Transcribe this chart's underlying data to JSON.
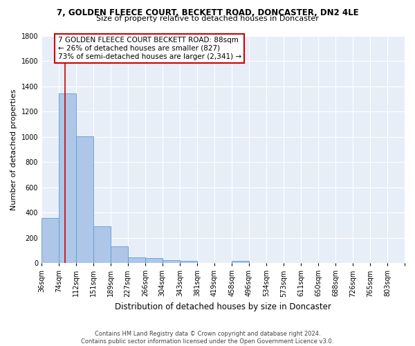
{
  "title1": "7, GOLDEN FLEECE COURT, BECKETT ROAD, DONCASTER, DN2 4LE",
  "title2": "Size of property relative to detached houses in Doncaster",
  "xlabel": "Distribution of detached houses by size in Doncaster",
  "ylabel": "Number of detached properties",
  "bar_values": [
    355,
    1340,
    1005,
    293,
    130,
    42,
    38,
    25,
    18,
    0,
    0,
    18,
    0,
    0,
    0,
    0,
    0,
    0,
    0,
    0
  ],
  "categories": [
    "36sqm",
    "74sqm",
    "112sqm",
    "151sqm",
    "189sqm",
    "227sqm",
    "266sqm",
    "304sqm",
    "343sqm",
    "381sqm",
    "419sqm",
    "458sqm",
    "496sqm",
    "534sqm",
    "573sqm",
    "611sqm",
    "650sqm",
    "688sqm",
    "726sqm",
    "765sqm",
    "803sqm"
  ],
  "bar_color": "#aec6e8",
  "bar_edge_color": "#5a9fd4",
  "property_line_x": 88,
  "bin_edges": [
    36,
    74,
    112,
    151,
    189,
    227,
    266,
    304,
    343,
    381,
    419,
    458,
    496,
    534,
    573,
    611,
    650,
    688,
    726,
    765,
    803
  ],
  "annotation_text": "7 GOLDEN FLEECE COURT BECKETT ROAD: 88sqm\n← 26% of detached houses are smaller (827)\n73% of semi-detached houses are larger (2,341) →",
  "annotation_box_color": "#ffffff",
  "annotation_box_edge": "#cc0000",
  "vline_color": "#cc0000",
  "ylim": [
    0,
    1800
  ],
  "yticks": [
    0,
    200,
    400,
    600,
    800,
    1000,
    1200,
    1400,
    1600,
    1800
  ],
  "background_color": "#e8eef8",
  "footer": "Contains HM Land Registry data © Crown copyright and database right 2024.\nContains public sector information licensed under the Open Government Licence v3.0.",
  "title1_fontsize": 8.5,
  "title2_fontsize": 8.0,
  "xlabel_fontsize": 8.5,
  "ylabel_fontsize": 8.0,
  "tick_fontsize": 7.0,
  "annotation_fontsize": 7.5,
  "footer_fontsize": 6.0
}
